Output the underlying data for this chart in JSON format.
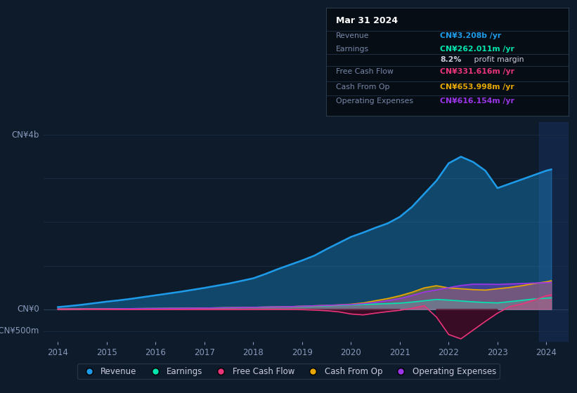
{
  "bg_color": "#0d1b2a",
  "plot_bg_color": "#0d1b2a",
  "grid_color": "#1a2e44",
  "years": [
    2014,
    2014.25,
    2014.5,
    2014.75,
    2015,
    2015.25,
    2015.5,
    2015.75,
    2016,
    2016.25,
    2016.5,
    2016.75,
    2017,
    2017.25,
    2017.5,
    2017.75,
    2018,
    2018.25,
    2018.5,
    2018.75,
    2019,
    2019.25,
    2019.5,
    2019.75,
    2020,
    2020.25,
    2020.5,
    2020.75,
    2021,
    2021.25,
    2021.5,
    2021.75,
    2022,
    2022.25,
    2022.5,
    2022.75,
    2023,
    2023.25,
    2023.5,
    2023.75,
    2024,
    2024.1
  ],
  "revenue": [
    50,
    75,
    105,
    140,
    175,
    205,
    240,
    280,
    320,
    360,
    400,
    445,
    490,
    540,
    590,
    650,
    710,
    810,
    920,
    1020,
    1120,
    1230,
    1380,
    1520,
    1660,
    1760,
    1870,
    1970,
    2120,
    2350,
    2650,
    2950,
    3350,
    3500,
    3380,
    3180,
    2780,
    2880,
    2980,
    3080,
    3180,
    3208
  ],
  "earnings": [
    4,
    5,
    6,
    7,
    9,
    11,
    13,
    15,
    17,
    19,
    21,
    24,
    27,
    31,
    35,
    39,
    44,
    49,
    54,
    59,
    64,
    69,
    79,
    89,
    99,
    109,
    119,
    129,
    140,
    165,
    195,
    225,
    210,
    190,
    170,
    155,
    145,
    175,
    205,
    235,
    255,
    262
  ],
  "free_cash_flow": [
    0,
    0,
    -1,
    -2,
    -3,
    -4,
    -5,
    -5,
    -5,
    -5,
    -6,
    -6,
    -6,
    -6,
    -6,
    -6,
    -5,
    -4,
    -3,
    -5,
    -10,
    -20,
    -35,
    -60,
    -110,
    -130,
    -90,
    -55,
    -25,
    20,
    80,
    -180,
    -580,
    -680,
    -480,
    -280,
    -90,
    60,
    120,
    210,
    310,
    331
  ],
  "cash_from_op": [
    4,
    5,
    6,
    7,
    9,
    11,
    13,
    15,
    17,
    19,
    21,
    24,
    27,
    31,
    35,
    39,
    44,
    49,
    54,
    59,
    69,
    79,
    89,
    99,
    115,
    145,
    195,
    245,
    310,
    390,
    490,
    540,
    490,
    470,
    450,
    440,
    470,
    500,
    540,
    590,
    630,
    654
  ],
  "operating_expenses": [
    4,
    5,
    6,
    7,
    9,
    11,
    13,
    15,
    17,
    19,
    21,
    24,
    27,
    31,
    35,
    39,
    44,
    49,
    54,
    59,
    69,
    79,
    89,
    99,
    108,
    128,
    158,
    198,
    245,
    315,
    395,
    445,
    495,
    545,
    575,
    575,
    570,
    580,
    590,
    600,
    610,
    616
  ],
  "revenue_color": "#1e9be8",
  "earnings_color": "#00e5b0",
  "free_cash_flow_color": "#e8357a",
  "cash_from_op_color": "#e8a800",
  "operating_expenses_color": "#9b35e8",
  "revenue_fill_alpha": 0.35,
  "earnings_fill_alpha": 0.45,
  "fcf_fill_alpha": 0.55,
  "cfop_fill_alpha": 0.35,
  "opex_fill_alpha": 0.35,
  "ylim_min": -750,
  "ylim_max": 4300,
  "xlim_min": 2013.7,
  "xlim_max": 2024.45,
  "xtick_values": [
    2014,
    2015,
    2016,
    2017,
    2018,
    2019,
    2020,
    2021,
    2022,
    2023,
    2024
  ],
  "xtick_labels": [
    "2014",
    "2015",
    "2016",
    "2017",
    "2018",
    "2019",
    "2020",
    "2021",
    "2022",
    "2023",
    "2024"
  ],
  "ytick_positions": [
    4000,
    0,
    -500
  ],
  "ytick_labels": [
    "CN¥4b",
    "CN¥0",
    "-CN¥500m"
  ],
  "grid_positions": [
    4000,
    3000,
    2000,
    1000,
    0,
    -500
  ],
  "highlight_x_start": 2023.85,
  "highlight_color": "#1a3060",
  "highlight_alpha": 0.5,
  "tooltip_title": "Mar 31 2024",
  "tooltip_rows": [
    {
      "label": "Revenue",
      "value": "CN¥3.208b /yr",
      "color": "#1e9be8"
    },
    {
      "label": "Earnings",
      "value": "CN¥262.011m /yr",
      "color": "#00e5b0"
    },
    {
      "label": "",
      "value": "8.2% profit margin",
      "color": "#aaaacc"
    },
    {
      "label": "Free Cash Flow",
      "value": "CN¥331.616m /yr",
      "color": "#e8357a"
    },
    {
      "label": "Cash From Op",
      "value": "CN¥653.998m /yr",
      "color": "#e8a800"
    },
    {
      "label": "Operating Expenses",
      "value": "CN¥616.154m /yr",
      "color": "#9b35e8"
    }
  ],
  "legend_items": [
    "Revenue",
    "Earnings",
    "Free Cash Flow",
    "Cash From Op",
    "Operating Expenses"
  ],
  "legend_colors": [
    "#1e9be8",
    "#00e5b0",
    "#e8357a",
    "#e8a800",
    "#9b35e8"
  ]
}
